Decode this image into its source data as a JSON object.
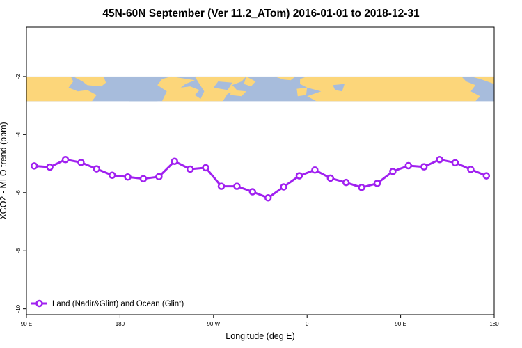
{
  "chart_data": {
    "type": "line",
    "title": "45N-60N September (Ver 11.2_ATom)   2016-01-01 to 2018-12-31",
    "xlabel": "Longitude (deg E)",
    "ylabel": "XCO2 - MLO trend (ppm)",
    "xlim": [
      90,
      450
    ],
    "ylim": [
      -10.2,
      -0.3
    ],
    "x_ticks": [
      {
        "value": 90,
        "label": "90 E"
      },
      {
        "value": 162,
        "label": "180"
      },
      {
        "value": 234,
        "label": "90 W"
      },
      {
        "value": 306,
        "label": "0"
      },
      {
        "value": 378,
        "label": "90 E"
      },
      {
        "value": 450,
        "label": "180"
      }
    ],
    "y_ticks": [
      {
        "value": -2,
        "label": "-2"
      },
      {
        "value": -4,
        "label": "-4"
      },
      {
        "value": -6,
        "label": "-6"
      },
      {
        "value": -8,
        "label": "-8"
      },
      {
        "value": -10,
        "label": "-10"
      }
    ],
    "map_band": {
      "y_top": -2.0,
      "y_bottom": -2.85
    },
    "series": [
      {
        "name": "Land (Nadir&Glint) and Ocean (Glint)",
        "color": "#a020f0",
        "x": [
          96,
          108,
          120,
          132,
          144,
          156,
          168,
          180,
          192,
          204,
          216,
          228,
          240,
          252,
          264,
          276,
          288,
          300,
          312,
          324,
          336,
          348,
          360,
          372,
          384,
          396,
          408,
          420,
          432,
          444
        ],
        "values": [
          -5.08,
          -5.12,
          -4.86,
          -4.96,
          -5.18,
          -5.4,
          -5.46,
          -5.52,
          -5.45,
          -4.92,
          -5.19,
          -5.14,
          -5.78,
          -5.78,
          -5.97,
          -6.18,
          -5.8,
          -5.42,
          -5.22,
          -5.5,
          -5.65,
          -5.82,
          -5.68,
          -5.27,
          -5.07,
          -5.11,
          -4.86,
          -4.97,
          -5.2,
          -5.42
        ]
      }
    ],
    "legend": {
      "position": "bottom-left"
    }
  },
  "colors": {
    "ocean": "#a7bcdc",
    "land": "#fcd67a",
    "frame": "#000000"
  }
}
